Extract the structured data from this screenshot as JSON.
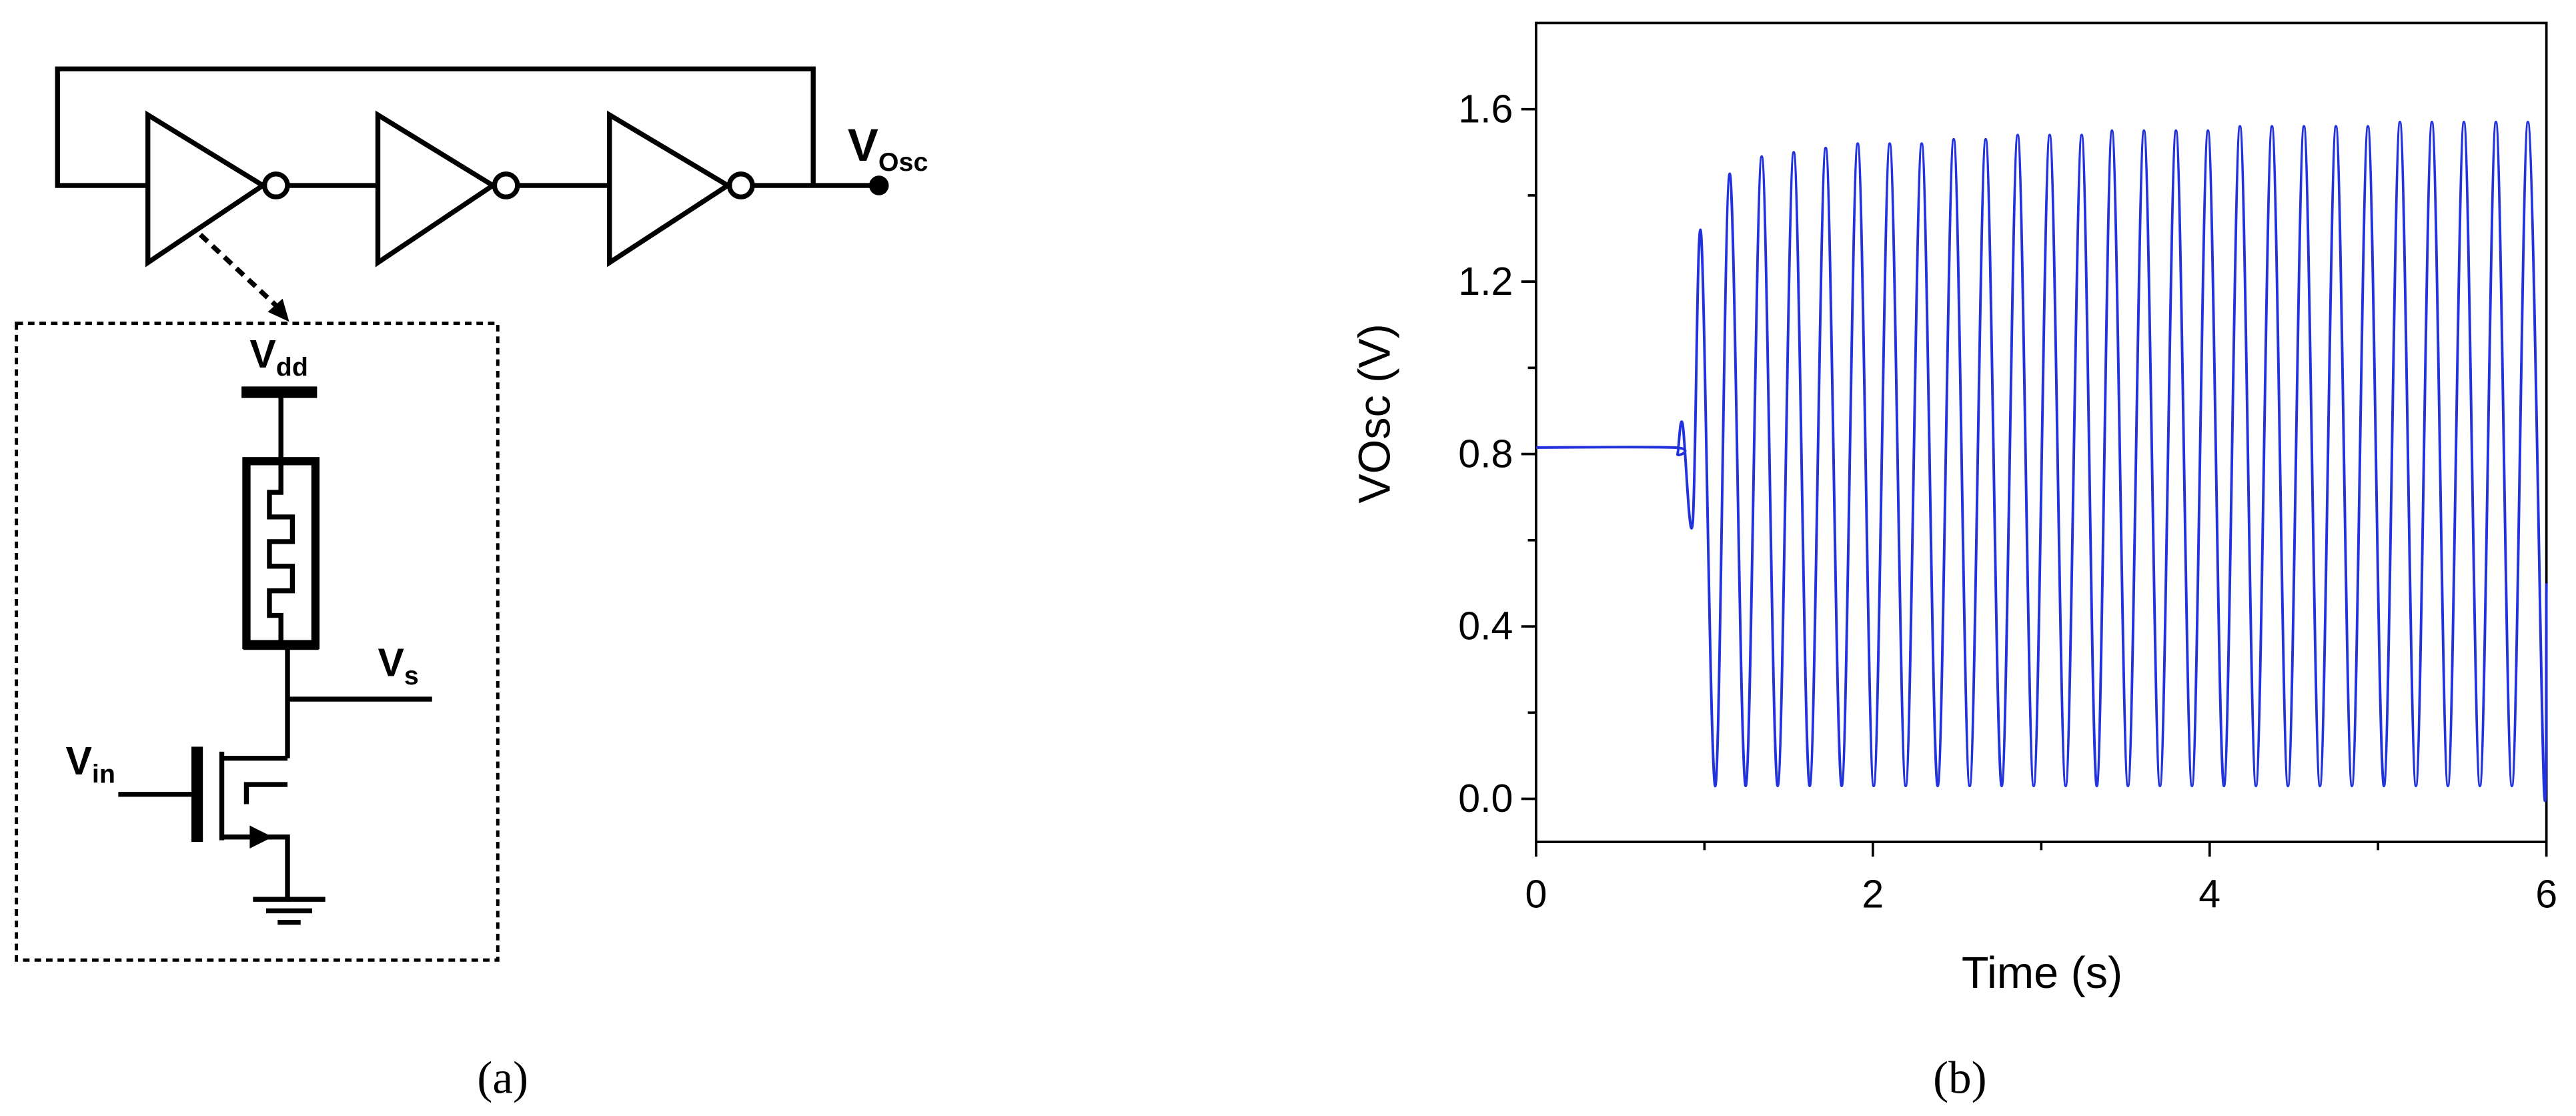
{
  "diagram": {
    "labels": {
      "osc": {
        "main": "V",
        "sub": "Osc"
      },
      "vdd": {
        "main": "V",
        "sub": "dd"
      },
      "vs": {
        "main": "V",
        "sub": "s"
      },
      "vin": {
        "main": "V",
        "sub": "in"
      }
    },
    "caption": "(a)"
  },
  "chart_data": {
    "type": "line",
    "caption": "(b)",
    "xlabel": "Time (s)",
    "ylabel": "VOsc (V)",
    "xlim": [
      0,
      6
    ],
    "xticks": [
      0,
      2,
      4,
      6
    ],
    "ylim": [
      -0.1,
      1.8
    ],
    "yticks": [
      {
        "value": 0,
        "label": "0.0"
      },
      0.4,
      0.8,
      1.2,
      1.6
    ],
    "color": "#2233dd",
    "x": [
      0,
      0.82,
      0.84,
      0.87,
      0.93,
      0.98,
      1.065,
      1.15,
      1.245,
      1.34,
      1.435,
      1.53,
      1.625,
      1.72,
      1.815,
      1.91,
      2.005,
      2.1,
      2.195,
      2.29,
      2.385,
      2.48,
      2.575,
      2.67,
      2.765,
      2.86,
      2.955,
      3.05,
      3.145,
      3.24,
      3.33,
      3.42,
      3.515,
      3.61,
      3.705,
      3.8,
      3.895,
      3.99,
      4.085,
      4.18,
      4.275,
      4.37,
      4.465,
      4.56,
      4.655,
      4.75,
      4.845,
      4.94,
      5.035,
      5.13,
      5.225,
      5.32,
      5.415,
      5.51,
      5.605,
      5.7,
      5.795,
      5.89,
      5.985,
      6
    ],
    "values": [
      0.815,
      0.815,
      0.8,
      0.87,
      0.64,
      1.31,
      0.03,
      1.45,
      0.03,
      1.49,
      0.03,
      1.5,
      0.03,
      1.51,
      0.03,
      1.52,
      0.03,
      1.52,
      0.03,
      1.52,
      0.03,
      1.53,
      0.03,
      1.53,
      0.03,
      1.54,
      0.03,
      1.54,
      0.03,
      1.54,
      0.03,
      1.55,
      0.03,
      1.55,
      0.03,
      1.55,
      0.03,
      1.55,
      0.03,
      1.56,
      0.03,
      1.56,
      0.03,
      1.56,
      0.03,
      1.56,
      0.03,
      1.56,
      0.03,
      1.57,
      0.03,
      1.57,
      0.03,
      1.57,
      0.03,
      1.57,
      0.03,
      1.57,
      0.03,
      0.5
    ]
  }
}
